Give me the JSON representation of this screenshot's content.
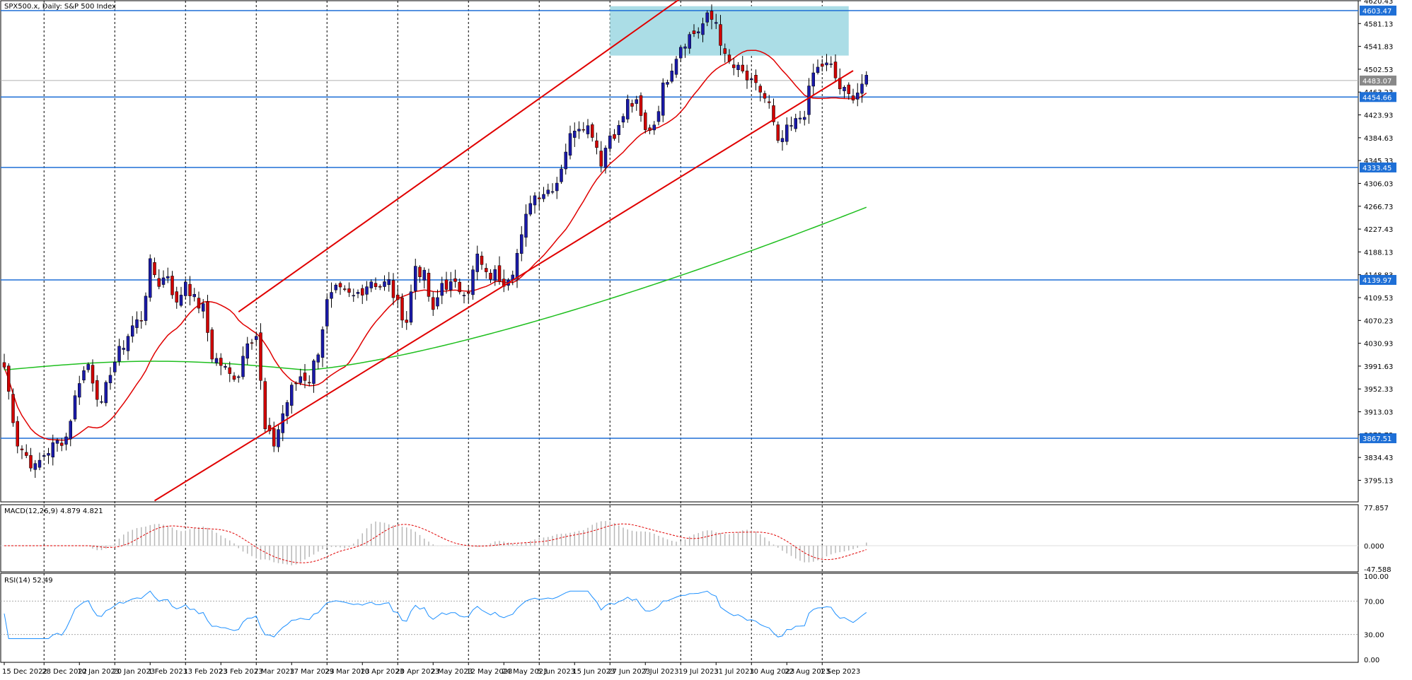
{
  "chart_data": [
    {
      "type": "candlestick",
      "title": "SPX500.x, Daily:  S&P 500 Index",
      "symbol": "SPX500.x",
      "timeframe": "Daily",
      "ylim": [
        3758.0,
        4620.43
      ],
      "y_ticks": [
        "4620.43",
        "4581.13",
        "4541.83",
        "4502.53",
        "4463.23",
        "4423.93",
        "4384.63",
        "4345.33",
        "4306.03",
        "4266.73",
        "4227.43",
        "4188.13",
        "4148.83",
        "4109.53",
        "4070.23",
        "4030.93",
        "3991.63",
        "3952.33",
        "3913.03",
        "3873.73",
        "3834.43",
        "3795.13"
      ],
      "x_ticks": [
        {
          "i": 0,
          "label": "15 Dec 2022"
        },
        {
          "i": 9,
          "label": "28 Dec 2022"
        },
        {
          "i": 17,
          "label": "10 Jan 2023"
        },
        {
          "i": 25,
          "label": "20 Jan 2023"
        },
        {
          "i": 33,
          "label": "1 Feb 2023"
        },
        {
          "i": 41,
          "label": "13 Feb 2023"
        },
        {
          "i": 49,
          "label": "23 Feb 2023"
        },
        {
          "i": 57,
          "label": "7 Mar 2023"
        },
        {
          "i": 65,
          "label": "17 Mar 2023"
        },
        {
          "i": 73,
          "label": "29 Mar 2023"
        },
        {
          "i": 81,
          "label": "10 Apr 2023"
        },
        {
          "i": 89,
          "label": "20 Apr 2023"
        },
        {
          "i": 97,
          "label": "2 May 2023"
        },
        {
          "i": 105,
          "label": "12 May 2023"
        },
        {
          "i": 113,
          "label": "24 May 2023"
        },
        {
          "i": 121,
          "label": "5 Jun 2023"
        },
        {
          "i": 129,
          "label": "15 Jun 2023"
        },
        {
          "i": 137,
          "label": "27 Jun 2023"
        },
        {
          "i": 145,
          "label": "7 Jul 2023"
        },
        {
          "i": 153,
          "label": "19 Jul 2023"
        },
        {
          "i": 161,
          "label": "31 Jul 2023"
        },
        {
          "i": 169,
          "label": "10 Aug 2023"
        },
        {
          "i": 177,
          "label": "22 Aug 2023"
        },
        {
          "i": 185,
          "label": "1 Sep 2023"
        }
      ],
      "close_anchors": [
        [
          0,
          3990
        ],
        [
          3,
          3860
        ],
        [
          7,
          3815
        ],
        [
          9,
          3840
        ],
        [
          12,
          3860
        ],
        [
          14,
          3870
        ],
        [
          17,
          3970
        ],
        [
          19,
          3995
        ],
        [
          22,
          3920
        ],
        [
          24,
          3985
        ],
        [
          26,
          4015
        ],
        [
          29,
          4060
        ],
        [
          31,
          4075
        ],
        [
          33,
          4165
        ],
        [
          35,
          4135
        ],
        [
          37,
          4150
        ],
        [
          39,
          4095
        ],
        [
          41,
          4140
        ],
        [
          43,
          4105
        ],
        [
          45,
          4090
        ],
        [
          47,
          4010
        ],
        [
          49,
          3995
        ],
        [
          51,
          3975
        ],
        [
          53,
          3980
        ],
        [
          55,
          4040
        ],
        [
          57,
          4045
        ],
        [
          59,
          3880
        ],
        [
          61,
          3858
        ],
        [
          63,
          3910
        ],
        [
          65,
          3951
        ],
        [
          67,
          3975
        ],
        [
          69,
          3970
        ],
        [
          71,
          4020
        ],
        [
          73,
          4100
        ],
        [
          75,
          4120
        ],
        [
          77,
          4115
        ],
        [
          79,
          4110
        ],
        [
          81,
          4125
        ],
        [
          83,
          4140
        ],
        [
          85,
          4130
        ],
        [
          87,
          4135
        ],
        [
          89,
          4095
        ],
        [
          91,
          4070
        ],
        [
          93,
          4165
        ],
        [
          95,
          4145
        ],
        [
          97,
          4080
        ],
        [
          99,
          4135
        ],
        [
          101,
          4130
        ],
        [
          103,
          4125
        ],
        [
          105,
          4125
        ],
        [
          107,
          4180
        ],
        [
          109,
          4145
        ],
        [
          111,
          4150
        ],
        [
          113,
          4140
        ],
        [
          115,
          4160
        ],
        [
          117,
          4210
        ],
        [
          119,
          4280
        ],
        [
          121,
          4290
        ],
        [
          123,
          4295
        ],
        [
          125,
          4310
        ],
        [
          127,
          4365
        ],
        [
          129,
          4405
        ],
        [
          131,
          4410
        ],
        [
          133,
          4395
        ],
        [
          135,
          4345
        ],
        [
          137,
          4390
        ],
        [
          139,
          4400
        ],
        [
          141,
          4445
        ],
        [
          143,
          4440
        ],
        [
          145,
          4395
        ],
        [
          147,
          4410
        ],
        [
          149,
          4470
        ],
        [
          151,
          4510
        ],
        [
          153,
          4545
        ],
        [
          155,
          4560
        ],
        [
          157,
          4570
        ],
        [
          159,
          4590
        ],
        [
          161,
          4585
        ],
        [
          163,
          4520
        ],
        [
          165,
          4505
        ],
        [
          167,
          4495
        ],
        [
          169,
          4475
        ],
        [
          171,
          4465
        ],
        [
          173,
          4440
        ],
        [
          175,
          4370
        ],
        [
          177,
          4395
        ],
        [
          179,
          4410
        ],
        [
          181,
          4430
        ],
        [
          183,
          4495
        ],
        [
          185,
          4510
        ],
        [
          187,
          4505
        ],
        [
          189,
          4470
        ],
        [
          191,
          4455
        ],
        [
          193,
          4465
        ],
        [
          194,
          4478
        ]
      ],
      "bands": [
        {
          "from": 3758,
          "to": 3758
        }
      ],
      "series": [
        {
          "name": "MA(20) red",
          "color": "#e00000"
        },
        {
          "name": "MA(100) green",
          "color": "#1fbf1f"
        }
      ],
      "horizontal_lines": [
        {
          "value": 4603.47,
          "label": "4603.47"
        },
        {
          "value": 4454.66,
          "label": "4454.66"
        },
        {
          "value": 4333.45,
          "label": "4333.45"
        },
        {
          "value": 4139.97,
          "label": "4139.97"
        },
        {
          "value": 3867.51,
          "label": "3867.51"
        }
      ],
      "current_price": {
        "value": 4483.07,
        "label": "4483.07"
      },
      "channel_lines": [
        {
          "from": [
            53,
            4085
          ],
          "to": [
            154,
            4630
          ]
        },
        {
          "from": [
            34,
            3760
          ],
          "to": [
            192,
            4500
          ]
        }
      ],
      "zone": {
        "from_i": 137,
        "to_i": 191,
        "y_low": 4526,
        "y_high": 4611
      },
      "grid": true
    },
    {
      "type": "line",
      "title": "MACD(12,26,9) 4.879 4.821",
      "ylim": [
        -47.588,
        77.857
      ],
      "y_ticks": [
        "77.857",
        "0.000",
        "-47.588"
      ]
    },
    {
      "type": "line",
      "title": "RSI(14) 52.49",
      "ylim": [
        0,
        100
      ],
      "y_ticks": [
        "100.00",
        "70.00",
        "30.00",
        "0.00"
      ],
      "levels": [
        70,
        30
      ]
    }
  ]
}
